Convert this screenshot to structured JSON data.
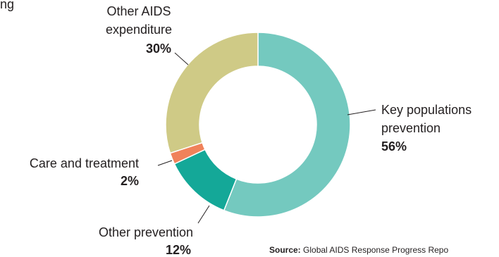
{
  "chart_data": {
    "type": "pie",
    "subtype": "donut",
    "slices": [
      {
        "label_lines": [
          "Key populations",
          "prevention"
        ],
        "value": 56,
        "value_label": "56%",
        "color": "#74c9bf"
      },
      {
        "label_lines": [
          "Other prevention"
        ],
        "value": 12,
        "value_label": "12%",
        "color": "#14a898"
      },
      {
        "label_lines": [
          "Care and treatment"
        ],
        "value": 2,
        "value_label": "2%",
        "color": "#f0825a"
      },
      {
        "label_lines": [
          "Other AIDS",
          "expenditure"
        ],
        "value": 30,
        "value_label": "30%",
        "color": "#cfca86"
      }
    ],
    "fragment_text": "ng",
    "source": {
      "prefix": "Source:",
      "text": "Global AIDS Response Progress Repo"
    }
  }
}
